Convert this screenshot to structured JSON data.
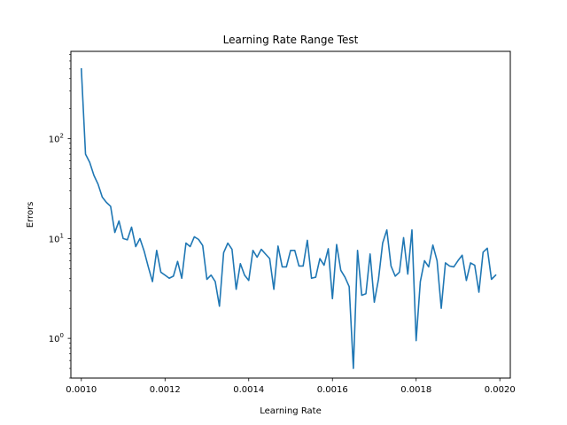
{
  "chart_data": {
    "type": "line",
    "title": "Learning Rate Range Test",
    "xlabel": "Learning Rate",
    "ylabel": "Errors",
    "xscale": "linear",
    "yscale": "log",
    "xlim": [
      0.000975,
      0.002025
    ],
    "ylim": [
      0.4,
      750
    ],
    "grid": false,
    "x_ticks": [
      {
        "value": 0.001,
        "label": "0.0010"
      },
      {
        "value": 0.0012,
        "label": "0.0012"
      },
      {
        "value": 0.0014,
        "label": "0.0014"
      },
      {
        "value": 0.0016,
        "label": "0.0016"
      },
      {
        "value": 0.0018,
        "label": "0.0018"
      },
      {
        "value": 0.002,
        "label": "0.0020"
      }
    ],
    "y_ticks": [
      {
        "value": 1,
        "base": "10",
        "exp": "0"
      },
      {
        "value": 10,
        "base": "10",
        "exp": "1"
      },
      {
        "value": 100,
        "base": "10",
        "exp": "2"
      }
    ],
    "x_start": 0.001,
    "x_step": 1e-05,
    "line_color": "#1f77b4",
    "series": [
      {
        "values": [
          500,
          70,
          58,
          43,
          35,
          26,
          23,
          21,
          11.5,
          15,
          10,
          9.7,
          13,
          8.3,
          10,
          7.5,
          5.2,
          3.7,
          7.6,
          4.6,
          4.3,
          4.0,
          4.2,
          5.9,
          4.0,
          9.0,
          8.3,
          10.4,
          9.8,
          8.5,
          3.9,
          4.3,
          3.7,
          2.1,
          7.2,
          9.0,
          7.8,
          3.1,
          5.6,
          4.3,
          3.8,
          7.6,
          6.5,
          7.8,
          7.0,
          6.3,
          3.1,
          8.4,
          5.2,
          5.2,
          7.6,
          7.6,
          5.3,
          5.3,
          9.6,
          4.0,
          4.1,
          6.3,
          5.4,
          7.9,
          2.5,
          8.7,
          4.8,
          4.1,
          3.3,
          0.5,
          7.6,
          2.7,
          2.8,
          7.0,
          2.3,
          3.9,
          9.0,
          12.2,
          5.3,
          4.2,
          4.6,
          10.2,
          4.4,
          12.2,
          0.95,
          3.7,
          6.0,
          5.2,
          8.6,
          6.0,
          2.0,
          5.7,
          5.3,
          5.2,
          6.0,
          6.8,
          3.8,
          5.7,
          5.4,
          2.9,
          7.3,
          8.0,
          3.9,
          4.3
        ]
      }
    ]
  }
}
